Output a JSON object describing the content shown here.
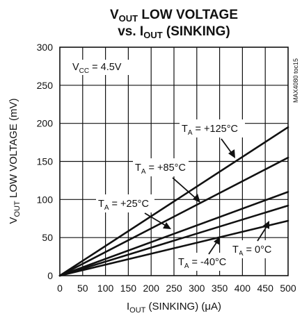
{
  "chart_data": {
    "type": "line",
    "title_line1": {
      "a": "V",
      "sub": "OUT",
      "b": " LOW VOLTAGE"
    },
    "title_line2": {
      "a": "vs. I",
      "sub": "OUT",
      "b": " (SINKING)"
    },
    "ylabel": {
      "a": "V",
      "sub": "OUT",
      "b": " LOW VOLTAGE (mV)"
    },
    "xlabel": {
      "a": "I",
      "sub": "OUT",
      "b": " (SINKING) (μA)"
    },
    "xlim": [
      0,
      500
    ],
    "ylim": [
      0,
      300
    ],
    "xticks": [
      0,
      50,
      100,
      150,
      200,
      250,
      300,
      350,
      400,
      450,
      500
    ],
    "yticks": [
      0,
      50,
      100,
      150,
      200,
      250,
      300
    ],
    "grid": true,
    "side_code": "MAX4080 toc15",
    "condition": {
      "a": "V",
      "sub": "CC",
      "b": " = 4.5V"
    },
    "series": [
      {
        "name": {
          "a": "T",
          "sub": "A",
          "b": " = +125°C"
        },
        "x": [
          0,
          500
        ],
        "y": [
          0,
          195
        ]
      },
      {
        "name": {
          "a": "T",
          "sub": "A",
          "b": " = +85°C"
        },
        "x": [
          0,
          500
        ],
        "y": [
          0,
          155
        ]
      },
      {
        "name": {
          "a": "T",
          "sub": "A",
          "b": " = +25°C"
        },
        "x": [
          0,
          500
        ],
        "y": [
          0,
          110
        ]
      },
      {
        "name": {
          "a": "T",
          "sub": "A",
          "b": " = 0°C"
        },
        "x": [
          0,
          500
        ],
        "y": [
          0,
          92
        ]
      },
      {
        "name": {
          "a": "T",
          "sub": "A",
          "b": " = -40°C"
        },
        "x": [
          0,
          500
        ],
        "y": [
          0,
          72
        ]
      }
    ]
  }
}
